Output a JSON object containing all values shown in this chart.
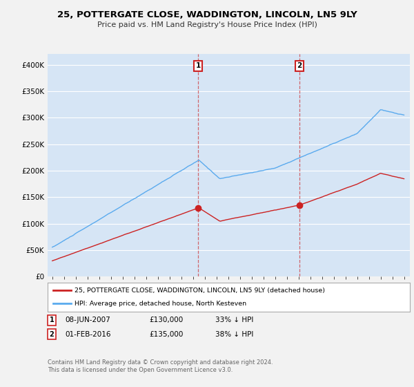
{
  "title": "25, POTTERGATE CLOSE, WADDINGTON, LINCOLN, LN5 9LY",
  "subtitle": "Price paid vs. HM Land Registry's House Price Index (HPI)",
  "ylim": [
    0,
    420000
  ],
  "yticks": [
    0,
    50000,
    100000,
    150000,
    200000,
    250000,
    300000,
    350000,
    400000
  ],
  "ytick_labels": [
    "£0",
    "£50K",
    "£100K",
    "£150K",
    "£200K",
    "£250K",
    "£300K",
    "£350K",
    "£400K"
  ],
  "fig_bg_color": "#f2f2f2",
  "plot_bg_color": "#d6e5f5",
  "hpi_color": "#5aaaee",
  "price_color": "#cc2222",
  "sale1_label": "08-JUN-2007",
  "sale1_price": "£130,000",
  "sale1_hpi": "33% ↓ HPI",
  "sale2_label": "01-FEB-2016",
  "sale2_price": "£135,000",
  "sale2_hpi": "38% ↓ HPI",
  "legend_label_price": "25, POTTERGATE CLOSE, WADDINGTON, LINCOLN, LN5 9LY (detached house)",
  "legend_label_hpi": "HPI: Average price, detached house, North Kesteven",
  "footer": "Contains HM Land Registry data © Crown copyright and database right 2024.\nThis data is licensed under the Open Government Licence v3.0.",
  "sale1_x": 2007.44,
  "sale1_y": 130000,
  "sale2_x": 2016.08,
  "sale2_y": 135000,
  "xmin": 1994.6,
  "xmax": 2025.5
}
